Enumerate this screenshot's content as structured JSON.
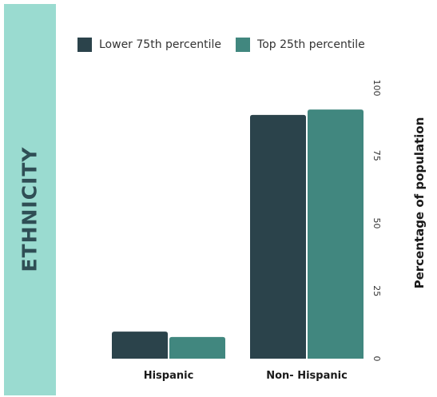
{
  "side_title": "ETHNICITY",
  "chart_data": {
    "type": "bar",
    "categories": [
      "Hispanic",
      "Non- Hispanic"
    ],
    "series": [
      {
        "name": "Lower 75th percentile",
        "values": [
          10,
          90
        ],
        "color": "#2b434b"
      },
      {
        "name": "Top 25th percentile",
        "values": [
          8,
          92
        ],
        "color": "#41877f"
      }
    ],
    "xlabel": "",
    "ylabel": "Percentage of population",
    "ylim": [
      0,
      100
    ],
    "yticks": [
      0,
      25,
      50,
      75,
      100
    ],
    "grid": false,
    "legend_position": "top"
  }
}
